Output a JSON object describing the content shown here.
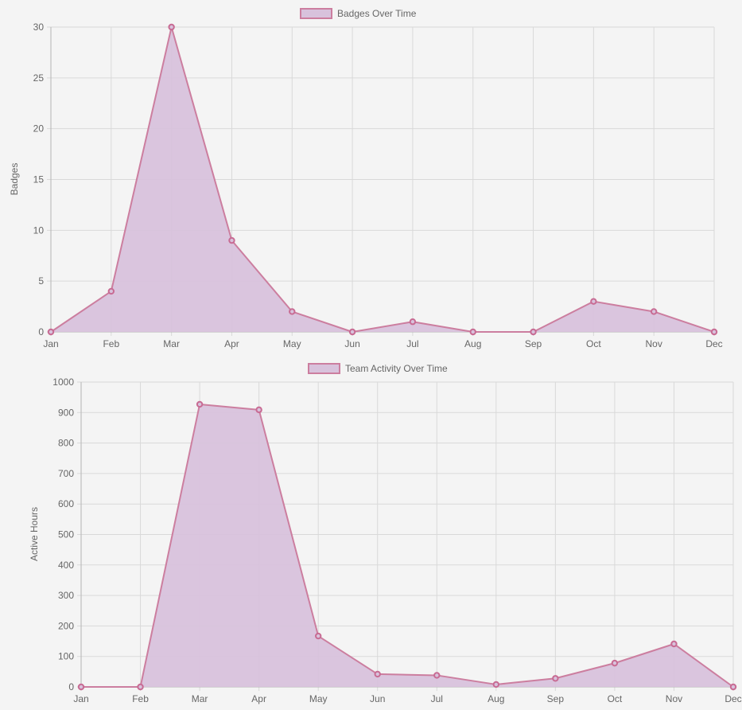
{
  "chart_data": [
    {
      "type": "area",
      "legend": "Badges Over Time",
      "legend_position": "top-center",
      "ylabel": "Badges",
      "xlabel": "",
      "grid": true,
      "categories": [
        "Jan",
        "Feb",
        "Mar",
        "Apr",
        "May",
        "Jun",
        "Jul",
        "Aug",
        "Sep",
        "Oct",
        "Nov",
        "Dec"
      ],
      "series": [
        {
          "name": "Badges Over Time",
          "values": [
            0,
            4,
            30,
            9,
            2,
            0,
            1,
            0,
            0,
            3,
            2,
            0
          ]
        }
      ],
      "ylim": [
        0,
        30
      ],
      "yticks": [
        "0",
        "5",
        "10",
        "15",
        "20",
        "25",
        "30"
      ],
      "colors": {
        "fill": "#d8c2dc",
        "line": "#cc7e9f",
        "point": "#c86b93"
      }
    },
    {
      "type": "area",
      "legend": "Team Activity Over Time",
      "legend_position": "top-center",
      "ylabel": "Active Hours",
      "xlabel": "",
      "grid": true,
      "categories": [
        "Jan",
        "Feb",
        "Mar",
        "Apr",
        "May",
        "Jun",
        "Jul",
        "Aug",
        "Sep",
        "Oct",
        "Nov",
        "Dec"
      ],
      "series": [
        {
          "name": "Team Activity Over Time",
          "values": [
            0,
            0,
            927,
            909,
            167,
            42,
            38,
            8,
            28,
            78,
            141,
            0
          ]
        }
      ],
      "ylim": [
        0,
        1000
      ],
      "yticks": [
        "0",
        "100",
        "200",
        "300",
        "400",
        "500",
        "600",
        "700",
        "800",
        "900",
        "1000"
      ],
      "colors": {
        "fill": "#d8c2dc",
        "line": "#cc7e9f",
        "point": "#c86b93"
      }
    }
  ]
}
